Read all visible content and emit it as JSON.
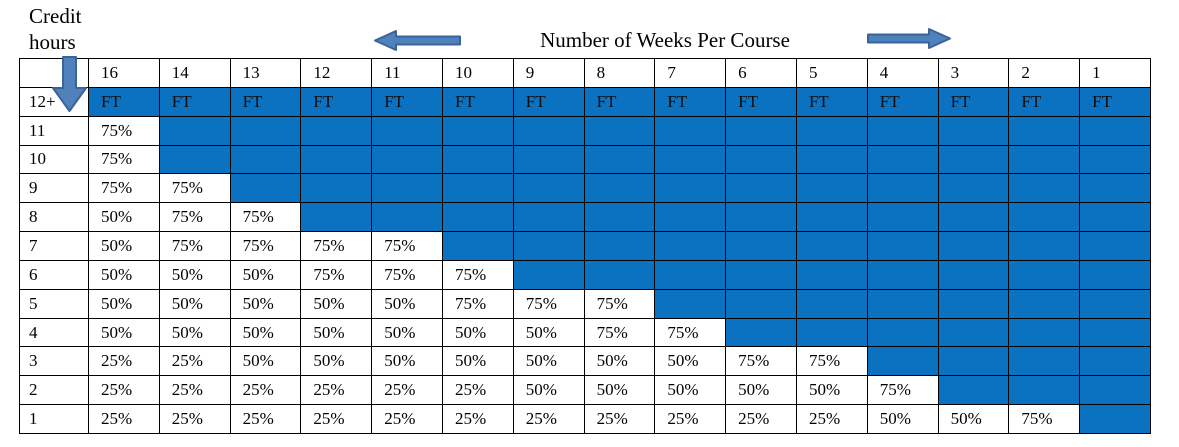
{
  "header": {
    "corner_label": "Credit\nhours",
    "title": "Number of Weeks Per Course"
  },
  "icons": {
    "left_arrow": "left-arrow-icon",
    "right_arrow": "right-arrow-icon",
    "down_arrow": "down-arrow-icon"
  },
  "colors": {
    "cell_blue": "#0b72c2",
    "arrow_fill": "#4f81bd",
    "arrow_stroke": "#3a6497",
    "gridline": "#000000"
  },
  "chart_data": {
    "type": "table",
    "title": "Number of Weeks Per Course",
    "row_axis_label": "Credit hours",
    "columns": [
      "16",
      "14",
      "13",
      "12",
      "11",
      "10",
      "9",
      "8",
      "7",
      "6",
      "5",
      "4",
      "3",
      "2",
      "1"
    ],
    "rows": [
      {
        "label": "12+",
        "cells": [
          "FT",
          "FT",
          "FT",
          "FT",
          "FT",
          "FT",
          "FT",
          "FT",
          "FT",
          "FT",
          "FT",
          "FT",
          "FT",
          "FT",
          "FT"
        ]
      },
      {
        "label": "11",
        "cells": [
          "75%",
          "",
          "",
          "",
          "",
          "",
          "",
          "",
          "",
          "",
          "",
          "",
          "",
          "",
          ""
        ]
      },
      {
        "label": "10",
        "cells": [
          "75%",
          "",
          "",
          "",
          "",
          "",
          "",
          "",
          "",
          "",
          "",
          "",
          "",
          "",
          ""
        ]
      },
      {
        "label": "9",
        "cells": [
          "75%",
          "75%",
          "",
          "",
          "",
          "",
          "",
          "",
          "",
          "",
          "",
          "",
          "",
          "",
          ""
        ]
      },
      {
        "label": "8",
        "cells": [
          "50%",
          "75%",
          "75%",
          "",
          "",
          "",
          "",
          "",
          "",
          "",
          "",
          "",
          "",
          "",
          ""
        ]
      },
      {
        "label": "7",
        "cells": [
          "50%",
          "75%",
          "75%",
          "75%",
          "75%",
          "",
          "",
          "",
          "",
          "",
          "",
          "",
          "",
          "",
          ""
        ]
      },
      {
        "label": "6",
        "cells": [
          "50%",
          "50%",
          "50%",
          "75%",
          "75%",
          "75%",
          "",
          "",
          "",
          "",
          "",
          "",
          "",
          "",
          ""
        ]
      },
      {
        "label": "5",
        "cells": [
          "50%",
          "50%",
          "50%",
          "50%",
          "50%",
          "75%",
          "75%",
          "75%",
          "",
          "",
          "",
          "",
          "",
          "",
          ""
        ]
      },
      {
        "label": "4",
        "cells": [
          "50%",
          "50%",
          "50%",
          "50%",
          "50%",
          "50%",
          "50%",
          "75%",
          "75%",
          "",
          "",
          "",
          "",
          "",
          ""
        ]
      },
      {
        "label": "3",
        "cells": [
          "25%",
          "25%",
          "50%",
          "50%",
          "50%",
          "50%",
          "50%",
          "50%",
          "50%",
          "75%",
          "75%",
          "",
          "",
          "",
          ""
        ]
      },
      {
        "label": "2",
        "cells": [
          "25%",
          "25%",
          "25%",
          "25%",
          "25%",
          "25%",
          "50%",
          "50%",
          "50%",
          "50%",
          "50%",
          "75%",
          "",
          "",
          ""
        ]
      },
      {
        "label": "1",
        "cells": [
          "25%",
          "25%",
          "25%",
          "25%",
          "25%",
          "25%",
          "25%",
          "25%",
          "25%",
          "25%",
          "25%",
          "50%",
          "50%",
          "75%",
          ""
        ]
      }
    ],
    "legend_note_values": [
      "FT",
      "75%",
      "50%",
      "25%"
    ],
    "blank_cells_meaning": "solid blue fill (no value shown)"
  }
}
